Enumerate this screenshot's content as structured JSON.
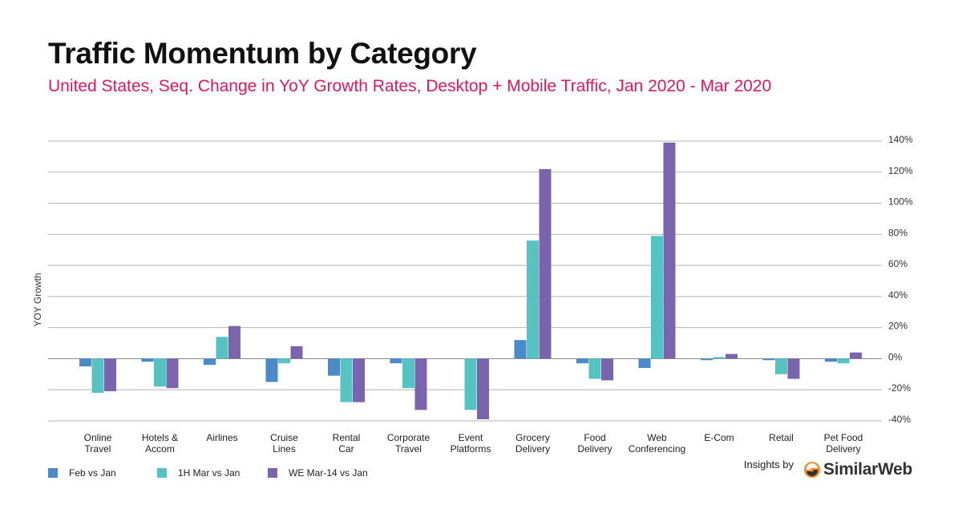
{
  "header": {
    "title": "Traffic Momentum by Category",
    "subtitle": "United States, Seq. Change in YoY Growth Rates, Desktop + Mobile Traffic, Jan 2020 - Mar 2020"
  },
  "colors": {
    "subtitle": "#e0195f",
    "series": [
      "#4a8ac9",
      "#56c3c3",
      "#7c63ad"
    ],
    "grid": "#b5b5b5"
  },
  "chart_data": {
    "type": "bar",
    "title": "Traffic Momentum by Category",
    "ylabel": "YOY Growth",
    "xlabel": "",
    "ylim": [
      -40,
      140
    ],
    "yticks": [
      140,
      120,
      100,
      80,
      60,
      40,
      20,
      0,
      -20,
      -40
    ],
    "ytick_labels": [
      "140%",
      "120%",
      "100%",
      "80%",
      "60%",
      "40%",
      "20%",
      "0%",
      "-20%",
      "-40%"
    ],
    "y_axis_position": "right",
    "grid": true,
    "legend_position": "bottom-left",
    "categories": [
      [
        "Online",
        "Travel"
      ],
      [
        "Hotels &",
        "Accom"
      ],
      [
        "Airlines"
      ],
      [
        "Cruise",
        "Lines"
      ],
      [
        "Rental",
        "Car"
      ],
      [
        "Corporate",
        "Travel"
      ],
      [
        "Event",
        "Platforms"
      ],
      [
        "Grocery",
        "Delivery"
      ],
      [
        "Food",
        "Delivery"
      ],
      [
        "Web",
        "Conferencing"
      ],
      [
        "E-Com"
      ],
      [
        "Retail"
      ],
      [
        "Pet Food",
        "Delivery"
      ]
    ],
    "series": [
      {
        "name": "Feb vs Jan",
        "values": [
          -5,
          -2,
          -4,
          -15,
          -11,
          -3,
          0,
          12,
          -3,
          -6,
          -1,
          -1,
          -2
        ]
      },
      {
        "name": "1H Mar vs Jan",
        "values": [
          -22,
          -18,
          14,
          -3,
          -28,
          -19,
          -33,
          76,
          -13,
          79,
          1,
          -10,
          -3
        ]
      },
      {
        "name": "WE Mar-14 vs Jan",
        "values": [
          -21,
          -19,
          21,
          8,
          -28,
          -33,
          -39,
          122,
          -14,
          139,
          3,
          -13,
          4
        ]
      }
    ]
  },
  "brand": {
    "prefix": "Insights by",
    "name": "SimilarWeb"
  }
}
